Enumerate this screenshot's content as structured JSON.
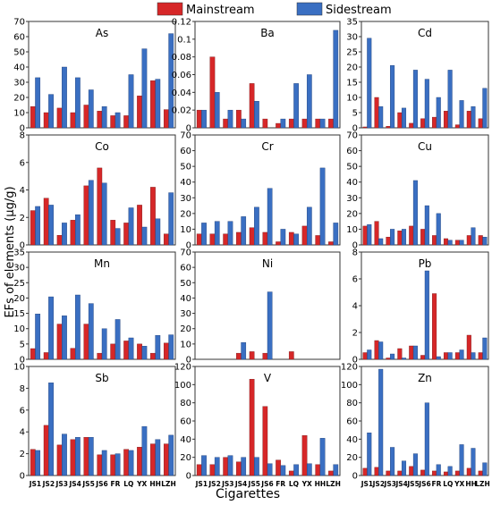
{
  "chart_data": {
    "type": "bar",
    "xlabel": "Cigarettes",
    "ylabel": "EFs of elements (μg/g)",
    "legend_position": "top-center",
    "categories": [
      "JS1",
      "JS2",
      "JS3",
      "JS4",
      "JS5",
      "JS6",
      "FR",
      "LQ",
      "YX",
      "HH",
      "LZH"
    ],
    "series_names": [
      "Mainstream",
      "Sidestream"
    ],
    "colors": {
      "Mainstream": "#d62728",
      "Sidestream": "#3a6fc2"
    },
    "panels": [
      {
        "element": "As",
        "ylim": [
          0,
          70
        ],
        "yticks": [
          0,
          10,
          20,
          30,
          40,
          50,
          60,
          70
        ],
        "mainstream": [
          14,
          10,
          13,
          10,
          15,
          11,
          8,
          8,
          21,
          31,
          12
        ],
        "sidestream": [
          33,
          22,
          40,
          33,
          25,
          14,
          10,
          35,
          52,
          32,
          62
        ]
      },
      {
        "element": "Ba",
        "ylim": [
          0,
          0.12
        ],
        "yticks": [
          0,
          0.02,
          0.04,
          0.06,
          0.08,
          0.1,
          0.12
        ],
        "mainstream": [
          0.02,
          0.08,
          0.01,
          0.02,
          0.05,
          0.01,
          0.005,
          0.01,
          0.01,
          0.01,
          0.01
        ],
        "sidestream": [
          0.02,
          0.04,
          0.02,
          0.01,
          0.03,
          0.0,
          0.01,
          0.05,
          0.06,
          0.01,
          0.11
        ]
      },
      {
        "element": "Cd",
        "ylim": [
          0,
          35
        ],
        "yticks": [
          0,
          5,
          10,
          15,
          20,
          25,
          30,
          35
        ],
        "mainstream": [
          0.3,
          10,
          0.5,
          5,
          1.5,
          3,
          3.5,
          5.5,
          1,
          5.5,
          3
        ],
        "sidestream": [
          29.5,
          7,
          20.5,
          6.5,
          19,
          16,
          10,
          19,
          9,
          7,
          13
        ]
      },
      {
        "element": "Co",
        "ylim": [
          0,
          8
        ],
        "yticks": [
          0,
          2,
          4,
          6,
          8
        ],
        "mainstream": [
          2.5,
          3.4,
          0.7,
          1.8,
          4.3,
          5.6,
          1.8,
          1.6,
          2.9,
          4.2,
          0.8
        ],
        "sidestream": [
          2.8,
          2.9,
          1.6,
          2.2,
          4.7,
          4.5,
          1.2,
          2.7,
          1.3,
          1.9,
          3.8
        ]
      },
      {
        "element": "Cr",
        "ylim": [
          0,
          70
        ],
        "yticks": [
          0,
          10,
          20,
          30,
          40,
          50,
          60,
          70
        ],
        "mainstream": [
          7,
          7,
          7,
          8,
          11,
          8,
          2,
          8,
          12,
          6,
          2
        ],
        "sidestream": [
          14,
          15,
          15,
          18,
          24,
          36,
          10,
          7,
          24,
          49,
          14
        ]
      },
      {
        "element": "Cu",
        "ylim": [
          0,
          70
        ],
        "yticks": [
          0,
          10,
          20,
          30,
          40,
          50,
          60,
          70
        ],
        "mainstream": [
          12,
          15,
          5,
          9,
          12,
          10,
          6,
          4,
          3,
          6,
          6
        ],
        "sidestream": [
          13,
          4,
          10,
          10,
          41,
          25,
          20,
          3,
          3,
          11,
          5
        ]
      },
      {
        "element": "Mn",
        "ylim": [
          0,
          35
        ],
        "yticks": [
          0,
          5,
          10,
          15,
          20,
          25,
          30,
          35
        ],
        "mainstream": [
          3.5,
          2.2,
          11.5,
          3.6,
          11.5,
          2,
          5,
          6,
          5,
          2,
          5.3
        ],
        "sidestream": [
          14.8,
          20.4,
          14.2,
          21,
          18.2,
          10,
          13,
          7,
          4.3,
          7.8,
          8
        ]
      },
      {
        "element": "Ni",
        "ylim": [
          0,
          70
        ],
        "yticks": [
          0,
          10,
          20,
          30,
          40,
          50,
          60,
          70
        ],
        "mainstream": [
          0,
          0,
          0,
          4,
          5,
          4,
          0,
          5,
          0,
          0,
          0
        ],
        "sidestream": [
          0,
          0,
          0,
          11,
          0,
          44,
          0,
          0,
          0,
          0,
          0
        ]
      },
      {
        "element": "Pb",
        "ylim": [
          0,
          8
        ],
        "yticks": [
          0,
          2,
          4,
          6,
          8
        ],
        "mainstream": [
          0.5,
          1.4,
          0.1,
          0.8,
          1,
          0.3,
          4.9,
          0.5,
          0.5,
          1.8,
          0.5
        ],
        "sidestream": [
          0.7,
          1.3,
          0.4,
          0.1,
          1,
          6.6,
          0.2,
          0.5,
          0.7,
          0.5,
          1.6
        ]
      },
      {
        "element": "Sb",
        "ylim": [
          0,
          10
        ],
        "yticks": [
          0,
          2,
          4,
          6,
          8,
          10
        ],
        "mainstream": [
          2.4,
          4.6,
          2.8,
          3.3,
          3.5,
          1.9,
          1.9,
          2.4,
          2.6,
          2.9,
          2.9
        ],
        "sidestream": [
          2.3,
          8.5,
          3.8,
          3.5,
          3.5,
          2.3,
          2,
          2.3,
          4.5,
          3.3,
          3.7
        ]
      },
      {
        "element": "V",
        "ylim": [
          0,
          120
        ],
        "yticks": [
          0,
          20,
          40,
          60,
          80,
          100,
          120
        ],
        "mainstream": [
          12,
          12,
          20,
          15,
          106,
          76,
          17,
          5,
          44,
          12,
          5
        ],
        "sidestream": [
          22,
          20,
          22,
          20,
          20,
          13,
          11,
          12,
          13,
          41,
          12
        ]
      },
      {
        "element": "Zn",
        "ylim": [
          0,
          120
        ],
        "yticks": [
          0,
          20,
          40,
          60,
          80,
          100,
          120
        ],
        "mainstream": [
          8,
          9,
          5,
          5,
          10,
          6,
          5,
          4,
          5,
          8,
          5
        ],
        "sidestream": [
          47,
          117,
          31,
          16,
          24,
          80,
          12,
          10,
          34,
          30,
          14
        ]
      }
    ]
  }
}
